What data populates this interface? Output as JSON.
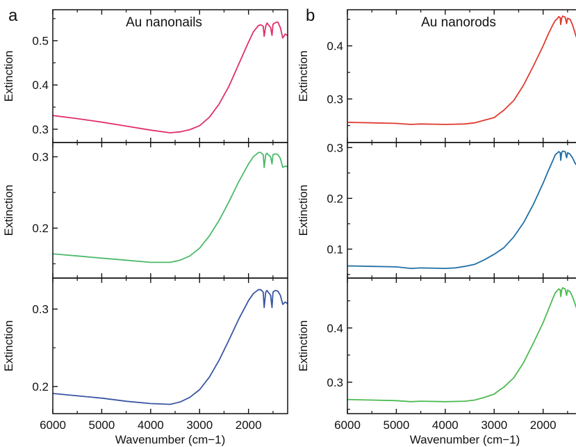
{
  "figure": {
    "panels": [
      {
        "letter": "a",
        "title": "Au nanonails",
        "xlabel": "Wavenumber (cm−1)"
      },
      {
        "letter": "b",
        "title": "Au nanorods",
        "xlabel": "Wavenumber (cm−1)"
      }
    ]
  },
  "chart_data": [
    {
      "type": "line",
      "panel": "a",
      "row": 0,
      "title": "Au nanonails",
      "xlabel": "",
      "ylabel": "Extinction",
      "xlim": [
        6000,
        1200
      ],
      "ylim": [
        0.27,
        0.57
      ],
      "xticks": [
        6000,
        5000,
        4000,
        3000,
        2000
      ],
      "yticks": [
        0.3,
        0.4,
        0.5
      ],
      "series": [
        {
          "color": "#e0306a",
          "x": [
            6000,
            5500,
            5000,
            4500,
            4000,
            3600,
            3400,
            3200,
            3000,
            2800,
            2600,
            2400,
            2200,
            2000,
            1900,
            1800,
            1750,
            1700,
            1680,
            1650,
            1640,
            1620,
            1600,
            1550,
            1520,
            1500,
            1450,
            1400,
            1350,
            1300,
            1250,
            1200
          ],
          "y": [
            0.331,
            0.324,
            0.316,
            0.307,
            0.298,
            0.292,
            0.294,
            0.299,
            0.308,
            0.327,
            0.357,
            0.397,
            0.447,
            0.497,
            0.52,
            0.534,
            0.536,
            0.533,
            0.51,
            0.532,
            0.535,
            0.54,
            0.537,
            0.53,
            0.512,
            0.537,
            0.541,
            0.542,
            0.53,
            0.506,
            0.515,
            0.512
          ]
        }
      ]
    },
    {
      "type": "line",
      "panel": "a",
      "row": 1,
      "xlabel": "",
      "ylabel": "Extinction",
      "xlim": [
        6000,
        1200
      ],
      "ylim": [
        0.13,
        0.32
      ],
      "xticks": [
        6000,
        5000,
        4000,
        3000,
        2000
      ],
      "yticks": [
        0.2,
        0.3
      ],
      "series": [
        {
          "color": "#4cba6a",
          "x": [
            6000,
            5500,
            5000,
            4500,
            4000,
            3600,
            3400,
            3200,
            3000,
            2800,
            2600,
            2400,
            2200,
            2000,
            1900,
            1800,
            1750,
            1700,
            1680,
            1650,
            1640,
            1620,
            1600,
            1550,
            1520,
            1500,
            1450,
            1400,
            1350,
            1300,
            1250,
            1200
          ],
          "y": [
            0.164,
            0.161,
            0.158,
            0.155,
            0.152,
            0.152,
            0.155,
            0.161,
            0.172,
            0.189,
            0.211,
            0.237,
            0.265,
            0.29,
            0.3,
            0.306,
            0.306,
            0.303,
            0.285,
            0.302,
            0.304,
            0.305,
            0.303,
            0.3,
            0.29,
            0.303,
            0.304,
            0.303,
            0.298,
            0.285,
            0.287,
            0.286
          ]
        }
      ]
    },
    {
      "type": "line",
      "panel": "a",
      "row": 2,
      "xlabel": "Wavenumber (cm−1)",
      "ylabel": "Extinction",
      "xlim": [
        6000,
        1200
      ],
      "ylim": [
        0.165,
        0.34
      ],
      "xticks": [
        6000,
        5000,
        4000,
        3000,
        2000
      ],
      "yticks": [
        0.2,
        0.3
      ],
      "series": [
        {
          "color": "#3a55a4",
          "x": [
            6000,
            5500,
            5000,
            4500,
            4000,
            3600,
            3400,
            3200,
            3000,
            2800,
            2600,
            2400,
            2200,
            2000,
            1900,
            1800,
            1750,
            1700,
            1680,
            1650,
            1640,
            1620,
            1600,
            1550,
            1520,
            1500,
            1450,
            1400,
            1350,
            1300,
            1250,
            1200
          ],
          "y": [
            0.191,
            0.188,
            0.185,
            0.181,
            0.178,
            0.177,
            0.18,
            0.186,
            0.196,
            0.212,
            0.234,
            0.26,
            0.287,
            0.311,
            0.32,
            0.325,
            0.325,
            0.322,
            0.302,
            0.321,
            0.323,
            0.324,
            0.322,
            0.318,
            0.302,
            0.322,
            0.324,
            0.323,
            0.318,
            0.306,
            0.309,
            0.307
          ]
        }
      ]
    },
    {
      "type": "line",
      "panel": "b",
      "row": 0,
      "title": "Au nanorods",
      "xlabel": "",
      "ylabel": "Extinction",
      "xlim": [
        6000,
        1200
      ],
      "ylim": [
        0.218,
        0.468
      ],
      "xticks": [
        6000,
        5000,
        4000,
        3000,
        2000
      ],
      "yticks": [
        0.3,
        0.4
      ],
      "series": [
        {
          "color": "#e03a2f",
          "x": [
            6000,
            5500,
            5000,
            4700,
            4500,
            4000,
            3600,
            3400,
            3200,
            3000,
            2900,
            2800,
            2600,
            2400,
            2200,
            2000,
            1900,
            1800,
            1750,
            1700,
            1680,
            1650,
            1640,
            1620,
            1600,
            1550,
            1520,
            1500,
            1450,
            1400,
            1350,
            1300,
            1250,
            1200
          ],
          "y": [
            0.256,
            0.255,
            0.254,
            0.252,
            0.253,
            0.252,
            0.253,
            0.255,
            0.26,
            0.265,
            0.272,
            0.279,
            0.297,
            0.326,
            0.362,
            0.4,
            0.421,
            0.44,
            0.448,
            0.452,
            0.455,
            0.453,
            0.44,
            0.452,
            0.456,
            0.454,
            0.442,
            0.452,
            0.45,
            0.44,
            0.425,
            0.41,
            0.398,
            0.385
          ]
        }
      ]
    },
    {
      "type": "line",
      "panel": "b",
      "row": 1,
      "xlabel": "",
      "ylabel": "Extinction",
      "xlim": [
        6000,
        1200
      ],
      "ylim": [
        0.043,
        0.31
      ],
      "xticks": [
        6000,
        5000,
        4000,
        3000,
        2000
      ],
      "yticks": [
        0.1,
        0.2,
        0.3
      ],
      "series": [
        {
          "color": "#1f6fa6",
          "x": [
            6000,
            5500,
            5000,
            4700,
            4500,
            4000,
            3800,
            3600,
            3400,
            3200,
            3000,
            2800,
            2600,
            2400,
            2200,
            2000,
            1900,
            1800,
            1750,
            1700,
            1680,
            1650,
            1640,
            1620,
            1600,
            1550,
            1520,
            1500,
            1450,
            1400,
            1350,
            1300,
            1250,
            1200
          ],
          "y": [
            0.067,
            0.066,
            0.065,
            0.062,
            0.063,
            0.062,
            0.063,
            0.066,
            0.07,
            0.079,
            0.09,
            0.103,
            0.124,
            0.152,
            0.188,
            0.23,
            0.253,
            0.275,
            0.286,
            0.29,
            0.292,
            0.29,
            0.275,
            0.29,
            0.293,
            0.292,
            0.28,
            0.29,
            0.287,
            0.28,
            0.27,
            0.263,
            0.258,
            0.255
          ]
        }
      ]
    },
    {
      "type": "line",
      "panel": "b",
      "row": 2,
      "xlabel": "Wavenumber (cm−1)",
      "ylabel": "Extinction",
      "xlim": [
        6000,
        1200
      ],
      "ylim": [
        0.242,
        0.492
      ],
      "xticks": [
        6000,
        5000,
        4000,
        3000,
        2000
      ],
      "yticks": [
        0.3,
        0.4
      ],
      "series": [
        {
          "color": "#4cba52",
          "x": [
            6000,
            5500,
            5000,
            4700,
            4500,
            4000,
            3600,
            3400,
            3200,
            3000,
            2900,
            2800,
            2600,
            2400,
            2200,
            2000,
            1900,
            1800,
            1750,
            1700,
            1680,
            1650,
            1640,
            1620,
            1600,
            1550,
            1520,
            1500,
            1450,
            1400,
            1350,
            1300,
            1250,
            1200
          ],
          "y": [
            0.268,
            0.267,
            0.266,
            0.264,
            0.265,
            0.264,
            0.265,
            0.267,
            0.272,
            0.278,
            0.285,
            0.291,
            0.308,
            0.336,
            0.372,
            0.41,
            0.432,
            0.455,
            0.465,
            0.47,
            0.472,
            0.47,
            0.458,
            0.47,
            0.474,
            0.472,
            0.46,
            0.47,
            0.467,
            0.458,
            0.445,
            0.432,
            0.42,
            0.408
          ]
        }
      ]
    }
  ]
}
